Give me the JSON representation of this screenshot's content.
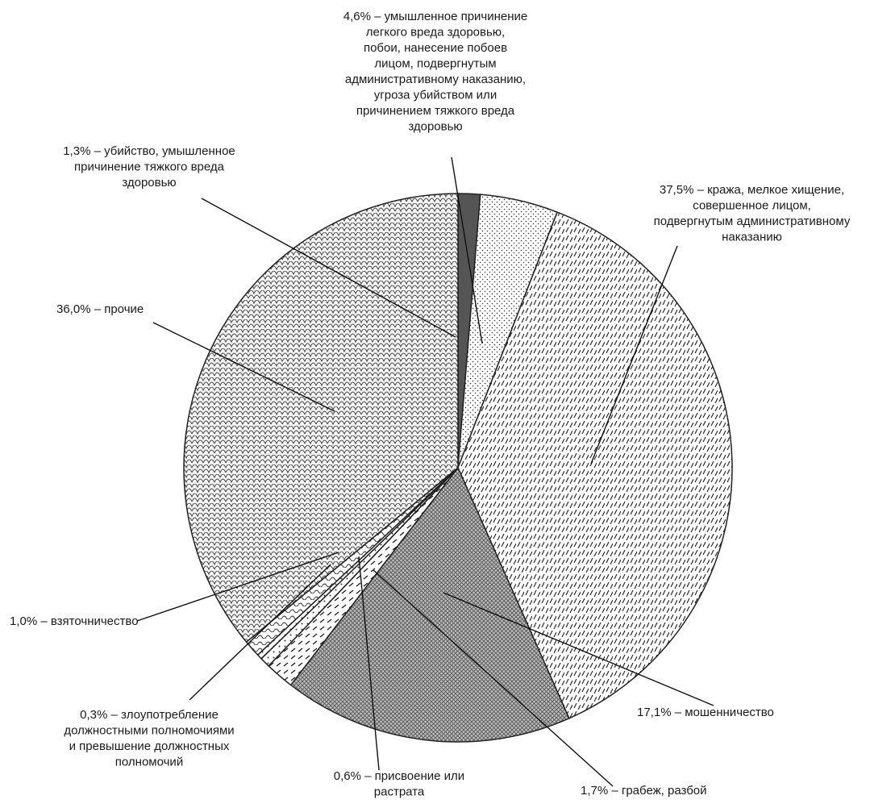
{
  "chart_data": {
    "type": "pie",
    "title": "",
    "slices": [
      {
        "pct_text": "1,3%",
        "value": 1.3,
        "label_lines": [
          "– убийство, умышленное",
          "причинение тяжкого вреда",
          "здоровью"
        ]
      },
      {
        "pct_text": "4,6%",
        "value": 4.6,
        "label_lines": [
          "– умышленное причинение",
          "легкого вреда здоровью,",
          "побои, нанесение побоев",
          "лицом, подвергнутым",
          "административному наказанию,",
          "угроза убийством или",
          "причинением тяжкого вреда",
          "здоровью"
        ]
      },
      {
        "pct_text": "37,5%",
        "value": 37.5,
        "label_lines": [
          "– кража, мелкое хищение,",
          "совершенное лицом,",
          "подвергнутым административному",
          "наказанию"
        ]
      },
      {
        "pct_text": "17,1%",
        "value": 17.1,
        "label_lines": [
          "– мошенничество"
        ]
      },
      {
        "pct_text": "1,7%",
        "value": 1.7,
        "label_lines": [
          "– грабеж, разбой"
        ]
      },
      {
        "pct_text": "0,6%",
        "value": 0.6,
        "label_lines": [
          "– присвоение или",
          "растрата"
        ]
      },
      {
        "pct_text": "0,3%",
        "value": 0.3,
        "label_lines": [
          "– злоупотребление",
          "должностными полномочиями",
          "и превышение должностных",
          "полномочий"
        ]
      },
      {
        "pct_text": "1,0%",
        "value": 1.0,
        "label_lines": [
          "– взяточничество"
        ]
      },
      {
        "pct_text": "36,0%",
        "value": 36.0,
        "label_lines": [
          "– прочие"
        ]
      }
    ],
    "patterns": [
      "dark-solid",
      "fine-dots",
      "diagonal-dashes",
      "dense-crosshatch",
      "dashes",
      "dots",
      "dots",
      "wave",
      "scales"
    ]
  }
}
